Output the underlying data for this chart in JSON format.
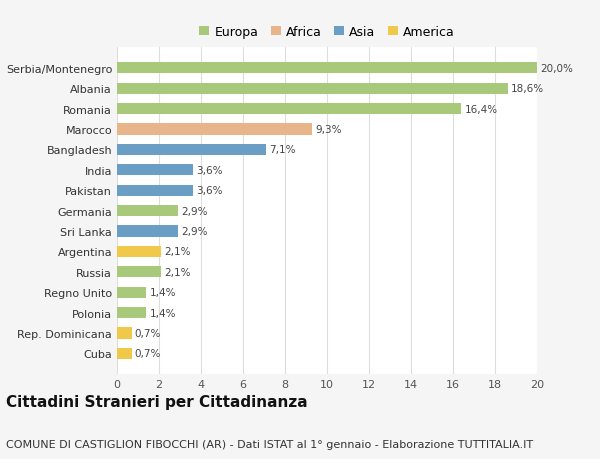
{
  "countries": [
    "Cuba",
    "Rep. Dominicana",
    "Polonia",
    "Regno Unito",
    "Russia",
    "Argentina",
    "Sri Lanka",
    "Germania",
    "Pakistan",
    "India",
    "Bangladesh",
    "Marocco",
    "Romania",
    "Albania",
    "Serbia/Montenegro"
  ],
  "values": [
    0.7,
    0.7,
    1.4,
    1.4,
    2.1,
    2.1,
    2.9,
    2.9,
    3.6,
    3.6,
    7.1,
    9.3,
    16.4,
    18.6,
    20.0
  ],
  "labels": [
    "0,7%",
    "0,7%",
    "1,4%",
    "1,4%",
    "2,1%",
    "2,1%",
    "2,9%",
    "2,9%",
    "3,6%",
    "3,6%",
    "7,1%",
    "9,3%",
    "16,4%",
    "18,6%",
    "20,0%"
  ],
  "continents": [
    "America",
    "America",
    "Europa",
    "Europa",
    "Europa",
    "America",
    "Asia",
    "Europa",
    "Asia",
    "Asia",
    "Asia",
    "Africa",
    "Europa",
    "Europa",
    "Europa"
  ],
  "colors": {
    "Europa": "#a8c87a",
    "Africa": "#e8b48a",
    "Asia": "#6a9ec5",
    "America": "#f0c84a"
  },
  "legend_order": [
    "Europa",
    "Africa",
    "Asia",
    "America"
  ],
  "xlim": [
    0,
    20
  ],
  "xticks": [
    0,
    2,
    4,
    6,
    8,
    10,
    12,
    14,
    16,
    18,
    20
  ],
  "title": "Cittadini Stranieri per Cittadinanza",
  "subtitle": "COMUNE DI CASTIGLION FIBOCCHI (AR) - Dati ISTAT al 1° gennaio - Elaborazione TUTTITALIA.IT",
  "background_color": "#f5f5f5",
  "plot_bg_color": "#ffffff",
  "title_fontsize": 11,
  "subtitle_fontsize": 8,
  "label_fontsize": 7.5,
  "tick_fontsize": 8,
  "bar_height": 0.55
}
